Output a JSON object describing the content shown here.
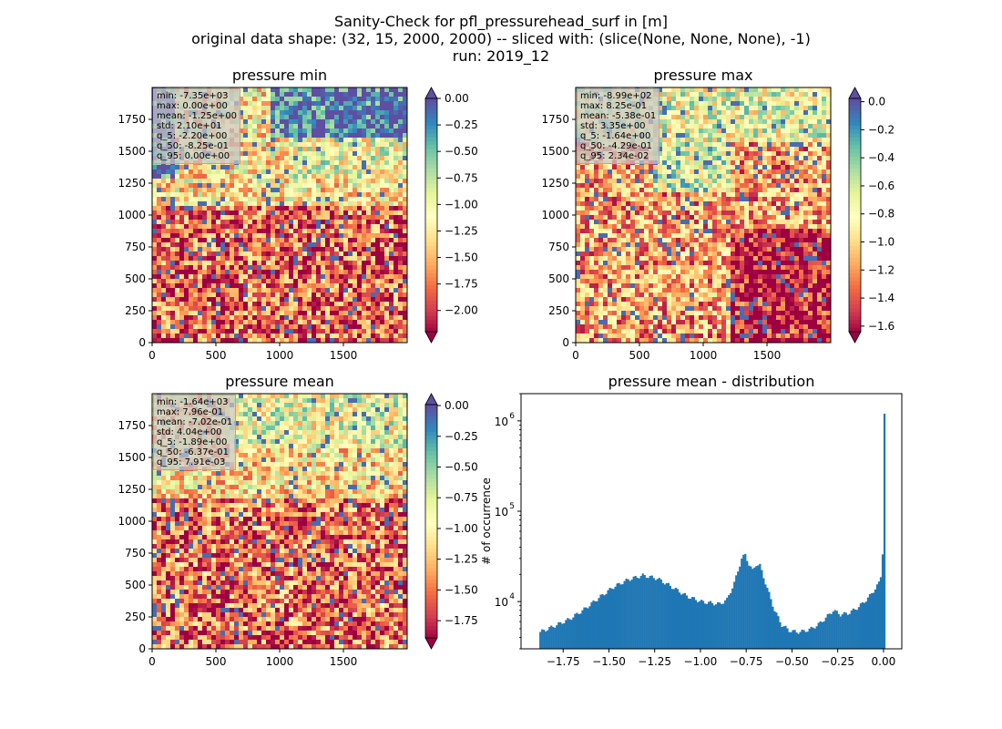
{
  "figure": {
    "title_lines": [
      "Sanity-Check for pfl_pressurehead_surf in [m]",
      "original data shape: (32, 15, 2000, 2000) -- sliced with: (slice(None, None, None), -1)",
      "run: 2019_12"
    ]
  },
  "chart_data": [
    {
      "type": "heatmap",
      "title": "pressure min",
      "xlim": [
        0,
        2000
      ],
      "ylim": [
        0,
        2000
      ],
      "xticks": [
        0,
        500,
        1000,
        1500
      ],
      "yticks": [
        0,
        250,
        500,
        750,
        1000,
        1250,
        1500,
        1750
      ],
      "colorbar": {
        "cmap": "Spectral",
        "vmin": -2.2,
        "vmax": 0.0,
        "ticks": [
          "0.00",
          "-0.25",
          "-0.50",
          "-0.75",
          "-1.00",
          "-1.25",
          "-1.50",
          "-1.75",
          "-2.00"
        ],
        "tick_values": [
          0,
          -0.25,
          -0.5,
          -0.75,
          -1.0,
          -1.25,
          -1.5,
          -1.75,
          -2.0
        ],
        "extend": "both"
      },
      "stats": [
        "min: -7.35e+03",
        "max: 0.00e+00",
        "mean: -1.25e+00",
        "std: 2.10e+01",
        "q_5: -2.20e+00",
        "q_50: -8.25e-01",
        "q_95: 0.00e+00"
      ]
    },
    {
      "type": "heatmap",
      "title": "pressure max",
      "xlim": [
        0,
        2000
      ],
      "ylim": [
        0,
        2000
      ],
      "xticks": [
        0,
        500,
        1000,
        1500
      ],
      "yticks": [
        0,
        250,
        500,
        750,
        1000,
        1250,
        1500,
        1750
      ],
      "colorbar": {
        "cmap": "Spectral",
        "vmin": -1.64,
        "vmax": 0.0234,
        "ticks": [
          "0.0",
          "-0.2",
          "-0.4",
          "-0.6",
          "-0.8",
          "-1.0",
          "-1.2",
          "-1.4",
          "-1.6"
        ],
        "tick_values": [
          0,
          -0.2,
          -0.4,
          -0.6,
          -0.8,
          -1.0,
          -1.2,
          -1.4,
          -1.6
        ],
        "extend": "both"
      },
      "stats": [
        "min: -8.99e+02",
        "max: 8.25e-01",
        "mean: -5.38e-01",
        "std: 3.35e+00",
        "q_5: -1.64e+00",
        "q_50: -4.29e-01",
        "q_95: 2.34e-02"
      ]
    },
    {
      "type": "heatmap",
      "title": "pressure mean",
      "xlim": [
        0,
        2000
      ],
      "ylim": [
        0,
        2000
      ],
      "xticks": [
        0,
        500,
        1000,
        1500
      ],
      "yticks": [
        0,
        250,
        500,
        750,
        1000,
        1250,
        1500,
        1750
      ],
      "colorbar": {
        "cmap": "Spectral",
        "vmin": -1.89,
        "vmax": 0.0079,
        "ticks": [
          "0.00",
          "-0.25",
          "-0.50",
          "-0.75",
          "-1.00",
          "-1.25",
          "-1.50",
          "-1.75"
        ],
        "tick_values": [
          0,
          -0.25,
          -0.5,
          -0.75,
          -1.0,
          -1.25,
          -1.5,
          -1.75
        ],
        "extend": "both"
      },
      "stats": [
        "min: -1.64e+03",
        "max: 7.96e-01",
        "mean: -7.02e-01",
        "std: 4.04e+00",
        "q_5: -1.89e+00",
        "q_50: -6.37e-01",
        "q_95: 7.91e-03"
      ]
    },
    {
      "type": "bar",
      "title": "pressure mean - distribution",
      "ylabel": "# of occurrence",
      "yscale": "log",
      "xlim": [
        -1.98,
        0.1
      ],
      "ylim": [
        3000,
        2000000
      ],
      "xticks": [
        -1.75,
        -1.5,
        -1.25,
        -1.0,
        -0.75,
        -0.5,
        -0.25,
        0.0
      ],
      "xtick_labels": [
        "−1.75",
        "−1.50",
        "−1.25",
        "−1.00",
        "−0.75",
        "−0.50",
        "−0.25",
        "0.00"
      ],
      "yticks": [
        10000,
        100000,
        1000000
      ],
      "ytick_labels": [
        "10",
        "10",
        "10"
      ],
      "ytick_exponents": [
        "4",
        "5",
        "6"
      ],
      "bar_color": "#1f77b4",
      "x": [
        -1.88,
        -1.8,
        -1.72,
        -1.64,
        -1.56,
        -1.48,
        -1.4,
        -1.32,
        -1.24,
        -1.16,
        -1.08,
        -1.0,
        -0.94,
        -0.9,
        -0.86,
        -0.82,
        -0.78,
        -0.76,
        -0.74,
        -0.72,
        -0.7,
        -0.68,
        -0.64,
        -0.6,
        -0.56,
        -0.52,
        -0.48,
        -0.44,
        -0.4,
        -0.36,
        -0.32,
        -0.28,
        -0.24,
        -0.2,
        -0.16,
        -0.12,
        -0.08,
        -0.05,
        -0.03,
        -0.02,
        -0.01,
        0.0
      ],
      "values": [
        4600,
        5400,
        6400,
        8200,
        11000,
        14500,
        17500,
        19500,
        18000,
        14500,
        11500,
        10000,
        9600,
        9400,
        10500,
        16000,
        30000,
        33000,
        26000,
        22000,
        26000,
        25000,
        14000,
        8000,
        5500,
        4800,
        4600,
        4700,
        5000,
        5600,
        6600,
        8000,
        7200,
        7400,
        8200,
        9500,
        11500,
        14000,
        16000,
        19000,
        35000,
        1200000
      ]
    }
  ]
}
